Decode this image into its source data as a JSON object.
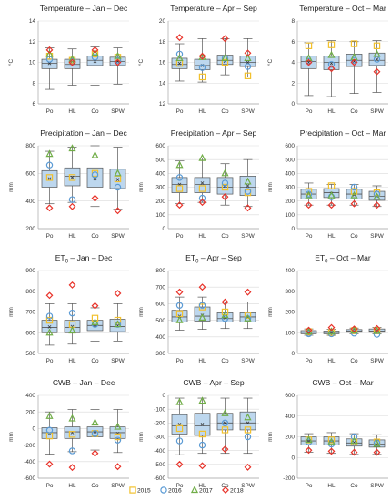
{
  "legend": [
    {
      "label": "2015",
      "marker": "square",
      "color": "#f2c12e"
    },
    {
      "label": "2016",
      "marker": "circle",
      "color": "#5b9bd5"
    },
    {
      "label": "2017",
      "marker": "triangle",
      "color": "#70ad47"
    },
    {
      "label": "2018",
      "marker": "diamond",
      "color": "#e8332a"
    }
  ],
  "box_color": "#bdd7ee",
  "box_edge": "#555555",
  "chart_data": [
    {
      "type": "box",
      "title": "Temperature – Jan – Dec",
      "ylabel": "°C",
      "ylim": [
        6,
        14
      ],
      "yticks": [
        6,
        8,
        10,
        12,
        14
      ],
      "categories": [
        "Po",
        "HL",
        "Co",
        "SPW"
      ],
      "boxes": [
        {
          "min": 7.4,
          "q1": 9.4,
          "median": 9.9,
          "q3": 10.3,
          "max": 11.4,
          "mean": 9.9
        },
        {
          "min": 7.8,
          "q1": 9.4,
          "median": 9.8,
          "q3": 10.3,
          "max": 11.3,
          "mean": 9.9
        },
        {
          "min": 7.8,
          "q1": 9.7,
          "median": 10.2,
          "q3": 10.6,
          "max": 11.5,
          "mean": 10.1
        },
        {
          "min": 7.9,
          "q1": 9.7,
          "median": 10.1,
          "q3": 10.5,
          "max": 11.4,
          "mean": 10.1
        }
      ],
      "years": {
        "2015": [
          10.6,
          10.2,
          10.8,
          10.5
        ],
        "2016": [
          10.3,
          10.1,
          10.5,
          10.2
        ],
        "2017": [
          10.8,
          10.3,
          10.9,
          10.6
        ],
        "2018": [
          11.2,
          10.0,
          11.2,
          10.0
        ]
      }
    },
    {
      "type": "box",
      "title": "Temperature – Apr – Sep",
      "ylabel": "°C",
      "ylim": [
        12,
        20
      ],
      "yticks": [
        12,
        14,
        16,
        18,
        20
      ],
      "categories": [
        "Po",
        "HL",
        "Co",
        "SPW"
      ],
      "boxes": [
        {
          "min": 14.2,
          "q1": 15.4,
          "median": 15.8,
          "q3": 16.4,
          "max": 17.8,
          "mean": 15.9
        },
        {
          "min": 14.1,
          "q1": 15.3,
          "median": 15.7,
          "q3": 16.3,
          "max": 18.3,
          "mean": 15.7
        },
        {
          "min": 14.8,
          "q1": 15.8,
          "median": 16.2,
          "q3": 16.7,
          "max": 18.3,
          "mean": 16.1
        },
        {
          "min": 14.6,
          "q1": 15.6,
          "median": 16.0,
          "q3": 16.6,
          "max": 18.3,
          "mean": 16.0
        }
      ],
      "years": {
        "2015": [
          15.9,
          14.6,
          16.0,
          14.7
        ],
        "2016": [
          16.8,
          15.5,
          16.4,
          15.6
        ],
        "2017": [
          16.4,
          16.5,
          16.4,
          16.4
        ],
        "2018": [
          18.4,
          16.6,
          18.3,
          16.9
        ]
      }
    },
    {
      "type": "box",
      "title": "Temperature – Oct – Mar",
      "ylabel": "°C",
      "ylim": [
        0,
        8
      ],
      "yticks": [
        0,
        2,
        4,
        6,
        8
      ],
      "categories": [
        "Po",
        "HL",
        "Co",
        "SPW"
      ],
      "boxes": [
        {
          "min": 0.8,
          "q1": 3.4,
          "median": 4.1,
          "q3": 4.6,
          "max": 5.9,
          "mean": 4.0
        },
        {
          "min": 0.7,
          "q1": 3.3,
          "median": 4.0,
          "q3": 4.6,
          "max": 6.1,
          "mean": 3.9
        },
        {
          "min": 1.0,
          "q1": 3.6,
          "median": 4.2,
          "q3": 4.8,
          "max": 6.0,
          "mean": 4.1
        },
        {
          "min": 1.1,
          "q1": 3.7,
          "median": 4.2,
          "q3": 4.9,
          "max": 6.1,
          "mean": 4.3
        }
      ],
      "years": {
        "2015": [
          5.6,
          5.7,
          5.8,
          5.6
        ],
        "2016": [
          4.1,
          3.8,
          4.2,
          4.3
        ],
        "2017": [
          4.4,
          4.7,
          4.5,
          4.8
        ],
        "2018": [
          4.0,
          3.4,
          4.0,
          3.1
        ]
      }
    },
    {
      "type": "box",
      "title": "Precipitation – Jan – Dec",
      "ylabel": "mm",
      "ylim": [
        200,
        800
      ],
      "yticks": [
        200,
        400,
        600,
        800
      ],
      "categories": [
        "Po",
        "HL",
        "Co",
        "SPW"
      ],
      "boxes": [
        {
          "min": 380,
          "q1": 500,
          "median": 560,
          "q3": 620,
          "max": 760,
          "mean": 560
        },
        {
          "min": 390,
          "q1": 510,
          "median": 580,
          "q3": 640,
          "max": 790,
          "mean": 570
        },
        {
          "min": 360,
          "q1": 500,
          "median": 560,
          "q3": 640,
          "max": 800,
          "mean": 560
        },
        {
          "min": 340,
          "q1": 490,
          "median": 560,
          "q3": 630,
          "max": 790,
          "mean": 555
        }
      ],
      "years": {
        "2015": [
          570,
          570,
          600,
          560
        ],
        "2016": [
          660,
          410,
          590,
          500
        ],
        "2017": [
          740,
          780,
          730,
          600
        ],
        "2018": [
          350,
          360,
          420,
          330
        ]
      }
    },
    {
      "type": "box",
      "title": "Precipitation – Apr – Sep",
      "ylabel": "mm",
      "ylim": [
        0,
        600
      ],
      "yticks": [
        0,
        100,
        200,
        300,
        400,
        500,
        600
      ],
      "categories": [
        "Po",
        "HL",
        "Co",
        "SPW"
      ],
      "boxes": [
        {
          "min": 180,
          "q1": 260,
          "median": 320,
          "q3": 370,
          "max": 490,
          "mean": 320
        },
        {
          "min": 190,
          "q1": 260,
          "median": 320,
          "q3": 370,
          "max": 510,
          "mean": 330
        },
        {
          "min": 170,
          "q1": 250,
          "median": 300,
          "q3": 370,
          "max": 470,
          "mean": 310
        },
        {
          "min": 160,
          "q1": 240,
          "median": 300,
          "q3": 380,
          "max": 500,
          "mean": 310
        }
      ],
      "years": {
        "2015": [
          290,
          290,
          300,
          260
        ],
        "2016": [
          370,
          220,
          330,
          270
        ],
        "2017": [
          460,
          510,
          400,
          340
        ],
        "2018": [
          170,
          190,
          230,
          150
        ]
      }
    },
    {
      "type": "box",
      "title": "Precipitation – Oct – Mar",
      "ylabel": "mm",
      "ylim": [
        0,
        600
      ],
      "yticks": [
        0,
        100,
        200,
        300,
        400,
        500,
        600
      ],
      "categories": [
        "Po",
        "HL",
        "Co",
        "SPW"
      ],
      "boxes": [
        {
          "min": 170,
          "q1": 215,
          "median": 250,
          "q3": 285,
          "max": 330,
          "mean": 250
        },
        {
          "min": 170,
          "q1": 225,
          "median": 260,
          "q3": 290,
          "max": 320,
          "mean": 255
        },
        {
          "min": 170,
          "q1": 215,
          "median": 250,
          "q3": 285,
          "max": 320,
          "mean": 245
        },
        {
          "min": 160,
          "q1": 205,
          "median": 235,
          "q3": 270,
          "max": 310,
          "mean": 235
        }
      ],
      "years": {
        "2015": [
          270,
          310,
          270,
          260
        ],
        "2016": [
          250,
          230,
          300,
          250
        ],
        "2017": [
          240,
          240,
          240,
          230
        ],
        "2018": [
          170,
          170,
          180,
          170
        ]
      }
    },
    {
      "type": "box",
      "title": "ET0 – Jan – Dec",
      "title_main": "ET",
      "title_sub": "0",
      "title_rest": " – Jan – Dec",
      "ylabel": "mm",
      "ylim": [
        500,
        900
      ],
      "yticks": [
        500,
        600,
        700,
        800,
        900
      ],
      "categories": [
        "Po",
        "HL",
        "Co",
        "SPW"
      ],
      "boxes": [
        {
          "min": 540,
          "q1": 600,
          "median": 625,
          "q3": 660,
          "max": 740,
          "mean": 628
        },
        {
          "min": 545,
          "q1": 600,
          "median": 625,
          "q3": 660,
          "max": 740,
          "mean": 630
        },
        {
          "min": 560,
          "q1": 610,
          "median": 635,
          "q3": 660,
          "max": 720,
          "mean": 635
        },
        {
          "min": 560,
          "q1": 605,
          "median": 630,
          "q3": 665,
          "max": 740,
          "mean": 635
        }
      ],
      "years": {
        "2015": [
          660,
          640,
          670,
          660
        ],
        "2016": [
          680,
          695,
          640,
          640
        ],
        "2017": [
          600,
          610,
          650,
          640
        ],
        "2018": [
          780,
          830,
          730,
          790
        ]
      }
    },
    {
      "type": "box",
      "title": "ET0 – Apr – Sep",
      "title_main": "ET",
      "title_sub": "0",
      "title_rest": " – Apr – Sep",
      "ylabel": "mm",
      "ylim": [
        300,
        800
      ],
      "yticks": [
        300,
        400,
        500,
        600,
        700,
        800
      ],
      "categories": [
        "Po",
        "HL",
        "Co",
        "SPW"
      ],
      "boxes": [
        {
          "min": 440,
          "q1": 490,
          "median": 520,
          "q3": 560,
          "max": 640,
          "mean": 525
        },
        {
          "min": 445,
          "q1": 495,
          "median": 525,
          "q3": 580,
          "max": 640,
          "mean": 530
        },
        {
          "min": 450,
          "q1": 490,
          "median": 510,
          "q3": 545,
          "max": 610,
          "mean": 515
        },
        {
          "min": 450,
          "q1": 490,
          "median": 520,
          "q3": 545,
          "max": 610,
          "mean": 518
        }
      ],
      "years": {
        "2015": [
          540,
          580,
          550,
          530
        ],
        "2016": [
          590,
          590,
          510,
          510
        ],
        "2017": [
          500,
          515,
          530,
          510
        ],
        "2018": [
          670,
          700,
          610,
          670
        ]
      }
    },
    {
      "type": "box",
      "title": "ET0 – Oct – Mar",
      "title_main": "ET",
      "title_sub": "0",
      "title_rest": " – Oct – Mar",
      "ylabel": "mm",
      "ylim": [
        0,
        400
      ],
      "yticks": [
        0,
        100,
        200,
        300,
        400
      ],
      "categories": [
        "Po",
        "HL",
        "Co",
        "SPW"
      ],
      "boxes": [
        {
          "min": 88,
          "q1": 95,
          "median": 102,
          "q3": 110,
          "max": 118,
          "mean": 102
        },
        {
          "min": 88,
          "q1": 95,
          "median": 101,
          "q3": 108,
          "max": 116,
          "mean": 101
        },
        {
          "min": 95,
          "q1": 102,
          "median": 108,
          "q3": 115,
          "max": 122,
          "mean": 108
        },
        {
          "min": 95,
          "q1": 102,
          "median": 108,
          "q3": 118,
          "max": 125,
          "mean": 110
        }
      ],
      "years": {
        "2015": [
          105,
          100,
          110,
          110
        ],
        "2016": [
          95,
          95,
          98,
          92
        ],
        "2017": [
          105,
          105,
          110,
          108
        ],
        "2018": [
          112,
          125,
          118,
          120
        ]
      }
    },
    {
      "type": "box",
      "title": "CWB – Jan – Dec",
      "ylabel": "mm",
      "ylim": [
        -600,
        400
      ],
      "yticks": [
        -600,
        -400,
        -200,
        0,
        200,
        400
      ],
      "categories": [
        "Po",
        "HL",
        "Co",
        "SPW"
      ],
      "boxes": [
        {
          "min": -310,
          "q1": -120,
          "median": -50,
          "q3": 10,
          "max": 200,
          "mean": -60
        },
        {
          "min": -280,
          "q1": -120,
          "median": -40,
          "q3": 20,
          "max": 230,
          "mean": -50
        },
        {
          "min": -260,
          "q1": -100,
          "median": -40,
          "q3": 20,
          "max": 230,
          "mean": -40
        },
        {
          "min": -290,
          "q1": -120,
          "median": -50,
          "q3": 20,
          "max": 230,
          "mean": -60
        }
      ],
      "years": {
        "2015": [
          -90,
          -70,
          -60,
          -100
        ],
        "2016": [
          -20,
          -270,
          -60,
          -140
        ],
        "2017": [
          150,
          120,
          70,
          20
        ],
        "2018": [
          -430,
          -470,
          -300,
          -460
        ]
      }
    },
    {
      "type": "box",
      "title": "CWB – Apr – Sep",
      "ylabel": "mm",
      "ylim": [
        -600,
        0
      ],
      "yticks": [
        -600,
        -500,
        -400,
        -300,
        -200,
        -100,
        0
      ],
      "categories": [
        "Po",
        "HL",
        "Co",
        "SPW"
      ],
      "boxes": [
        {
          "min": -430,
          "q1": -280,
          "median": -220,
          "q3": -140,
          "max": -20,
          "mean": -210
        },
        {
          "min": -420,
          "q1": -290,
          "median": -220,
          "q3": -130,
          "max": -20,
          "mean": -210
        },
        {
          "min": -420,
          "q1": -250,
          "median": -200,
          "q3": -130,
          "max": -20,
          "mean": -200
        },
        {
          "min": -420,
          "q1": -250,
          "median": -200,
          "q3": -120,
          "max": -20,
          "mean": -200
        }
      ],
      "years": {
        "2015": [
          -240,
          -280,
          -250,
          -250
        ],
        "2016": [
          -330,
          -360,
          -200,
          -300
        ],
        "2017": [
          -50,
          -40,
          -130,
          -160
        ],
        "2018": [
          -500,
          -510,
          -390,
          -520
        ]
      }
    },
    {
      "type": "box",
      "title": "CWB – Oct – Mar",
      "ylabel": "mm",
      "ylim": [
        -200,
        600
      ],
      "yticks": [
        -200,
        0,
        200,
        400,
        600
      ],
      "categories": [
        "Po",
        "HL",
        "Co",
        "SPW"
      ],
      "boxes": [
        {
          "min": 50,
          "q1": 120,
          "median": 160,
          "q3": 200,
          "max": 230,
          "mean": 160
        },
        {
          "min": 40,
          "q1": 120,
          "median": 160,
          "q3": 200,
          "max": 240,
          "mean": 155
        },
        {
          "min": 30,
          "q1": 110,
          "median": 140,
          "q3": 180,
          "max": 230,
          "mean": 145
        },
        {
          "min": 30,
          "q1": 100,
          "median": 130,
          "q3": 170,
          "max": 220,
          "mean": 130
        }
      ],
      "years": {
        "2015": [
          170,
          170,
          150,
          150
        ],
        "2016": [
          150,
          130,
          200,
          140
        ],
        "2017": [
          170,
          150,
          160,
          130
        ],
        "2018": [
          70,
          60,
          50,
          50
        ]
      }
    }
  ]
}
